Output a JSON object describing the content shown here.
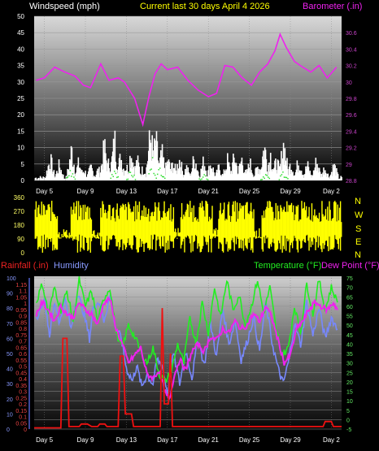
{
  "header": {
    "left": "Windspeed (mph)",
    "center": "Current last 30 days April 4 2026",
    "right": "Barometer (.in)"
  },
  "colors": {
    "wind": "#ffffff",
    "gust_dots": "#33dd33",
    "barometer": "#ee22ee",
    "direction": "#ffff00",
    "rain": "#ee1111",
    "humidity": "#7788ff",
    "temperature": "#22ee22",
    "dewpoint": "#ee22ee",
    "axis_left": "#ffff66",
    "axis_right": "#cc44cc",
    "rain_axis": "#ee4444",
    "humidity_axis": "#8899ff",
    "temp_axis": "#66ee66"
  },
  "chart_data": [
    {
      "type": "bar",
      "name": "windspeed",
      "title": "Current last 30 days April 4 2026",
      "ylabel": "Windspeed (mph)",
      "ylim": [
        0,
        50
      ],
      "yticks": [
        0,
        5,
        10,
        15,
        20,
        25,
        30,
        35,
        40,
        45,
        50
      ],
      "xticks": [
        "Day 5",
        "Day 9",
        "Day 13",
        "Day 17",
        "Day 21",
        "Day 25",
        "Day 29",
        "Day 2"
      ],
      "x_range": [
        4,
        34
      ],
      "wind_peaks": [
        [
          5.5,
          10
        ],
        [
          6.4,
          7
        ],
        [
          7.6,
          14
        ],
        [
          8.3,
          8
        ],
        [
          8.8,
          5
        ],
        [
          9.5,
          6
        ],
        [
          10.2,
          5
        ],
        [
          10.8,
          15
        ],
        [
          11.3,
          9
        ],
        [
          11.8,
          18
        ],
        [
          12.4,
          11
        ],
        [
          12.9,
          7
        ],
        [
          13.4,
          13
        ],
        [
          14.0,
          9
        ],
        [
          14.6,
          6
        ],
        [
          15.3,
          21
        ],
        [
          15.8,
          18
        ],
        [
          16.4,
          12
        ],
        [
          17.0,
          9
        ],
        [
          17.5,
          8
        ],
        [
          18.1,
          10
        ],
        [
          18.8,
          6
        ],
        [
          19.6,
          11
        ],
        [
          20.5,
          9
        ],
        [
          21.2,
          8
        ],
        [
          22.0,
          6
        ],
        [
          22.8,
          9
        ],
        [
          23.5,
          11
        ],
        [
          24.2,
          10
        ],
        [
          25.0,
          8
        ],
        [
          25.8,
          7
        ],
        [
          26.4,
          16
        ],
        [
          27.0,
          12
        ],
        [
          27.6,
          9
        ],
        [
          28.3,
          17
        ],
        [
          29.0,
          8
        ],
        [
          29.8,
          10
        ],
        [
          30.6,
          7
        ],
        [
          31.5,
          9
        ],
        [
          32.3,
          6
        ],
        [
          33.2,
          7
        ]
      ],
      "gust_peaks": [
        [
          7.5,
          4
        ],
        [
          11.8,
          5
        ],
        [
          13.4,
          4
        ],
        [
          15.5,
          8
        ],
        [
          16.3,
          6
        ],
        [
          20.5,
          3
        ],
        [
          26.5,
          3
        ],
        [
          28.3,
          4
        ]
      ],
      "barometer": {
        "ylabel": "Barometer (.in)",
        "ylim": [
          28.8,
          30.8
        ],
        "yticks": [
          28.8,
          29,
          29.2,
          29.4,
          29.6,
          29.8,
          30,
          30.2,
          30.4,
          30.6
        ],
        "points": [
          [
            4.2,
            30.02
          ],
          [
            5.0,
            30.05
          ],
          [
            6.0,
            30.18
          ],
          [
            7.0,
            30.12
          ],
          [
            8.0,
            30.07
          ],
          [
            8.8,
            29.96
          ],
          [
            9.5,
            29.93
          ],
          [
            10.5,
            30.22
          ],
          [
            11.3,
            30.02
          ],
          [
            12.2,
            30.05
          ],
          [
            12.8,
            30.0
          ],
          [
            13.8,
            29.8
          ],
          [
            14.6,
            29.48
          ],
          [
            15.2,
            29.82
          ],
          [
            15.8,
            30.1
          ],
          [
            16.4,
            30.22
          ],
          [
            17.0,
            30.15
          ],
          [
            18.0,
            30.18
          ],
          [
            19.0,
            30.02
          ],
          [
            20.0,
            29.9
          ],
          [
            21.0,
            29.82
          ],
          [
            21.8,
            29.86
          ],
          [
            22.6,
            30.2
          ],
          [
            23.4,
            30.18
          ],
          [
            24.3,
            30.05
          ],
          [
            25.2,
            29.96
          ],
          [
            26.0,
            30.12
          ],
          [
            26.8,
            30.22
          ],
          [
            27.5,
            30.38
          ],
          [
            28.0,
            30.58
          ],
          [
            28.6,
            30.42
          ],
          [
            29.4,
            30.25
          ],
          [
            30.2,
            30.18
          ],
          [
            31.0,
            30.12
          ],
          [
            31.8,
            30.2
          ],
          [
            32.6,
            30.05
          ],
          [
            33.5,
            30.18
          ]
        ]
      }
    },
    {
      "type": "scatter",
      "name": "wind_direction",
      "yticks": [
        0,
        90,
        180,
        270,
        360
      ],
      "ylim": [
        0,
        360
      ],
      "compass": [
        "N",
        "W",
        "S",
        "E",
        "N"
      ],
      "x_range": [
        4,
        34
      ]
    },
    {
      "type": "line",
      "name": "rain_humidity_temperature",
      "x_range": [
        4,
        34
      ],
      "xticks": [
        "Day 5",
        "Day 9",
        "Day 13",
        "Day 17",
        "Day 21",
        "Day 25",
        "Day 29",
        "Day 2"
      ],
      "rain": {
        "label": "Rainfall (.in)",
        "ylim": [
          0,
          1.2
        ],
        "yticks": [
          0,
          0.05,
          0.1,
          0.15,
          0.2,
          0.25,
          0.3,
          0.35,
          0.4,
          0.45,
          0.5,
          0.55,
          0.6,
          0.65,
          0.7,
          0.75,
          0.8,
          0.85,
          0.9,
          0.95,
          1,
          1.05,
          1.1,
          1.15
        ],
        "points": [
          [
            4,
            0.01
          ],
          [
            6.6,
            0.01
          ],
          [
            6.8,
            0.72
          ],
          [
            7.2,
            0.72
          ],
          [
            7.4,
            0.02
          ],
          [
            8.4,
            0.02
          ],
          [
            8.6,
            0.04
          ],
          [
            9.2,
            0.04
          ],
          [
            9.6,
            0.02
          ],
          [
            10.2,
            0.02
          ],
          [
            10.4,
            0.04
          ],
          [
            10.9,
            0.04
          ],
          [
            11.1,
            0.02
          ],
          [
            12.2,
            0.02
          ],
          [
            12.4,
            0.58
          ],
          [
            12.7,
            0.58
          ],
          [
            12.9,
            0.12
          ],
          [
            13.5,
            0.12
          ],
          [
            13.7,
            0.02
          ],
          [
            16.3,
            0.02
          ],
          [
            16.5,
            0.96
          ],
          [
            16.7,
            0.2
          ],
          [
            17.1,
            0.2
          ],
          [
            17.3,
            0.6
          ],
          [
            17.5,
            0.02
          ],
          [
            32.2,
            0.02
          ],
          [
            32.4,
            0.06
          ],
          [
            33.0,
            0.06
          ],
          [
            33.2,
            0.02
          ],
          [
            34,
            0.02
          ]
        ]
      },
      "humidity": {
        "label": "Humidity",
        "ylim": [
          0,
          100
        ],
        "yticks": [
          0,
          10,
          20,
          30,
          40,
          50,
          60,
          70,
          80,
          90,
          100
        ],
        "points": [
          [
            4.2,
            72
          ],
          [
            5.0,
            88
          ],
          [
            5.5,
            62
          ],
          [
            6.0,
            84
          ],
          [
            6.5,
            70
          ],
          [
            7.0,
            86
          ],
          [
            7.6,
            66
          ],
          [
            8.2,
            90
          ],
          [
            8.8,
            78
          ],
          [
            9.4,
            60
          ],
          [
            9.8,
            82
          ],
          [
            10.4,
            84
          ],
          [
            10.8,
            72
          ],
          [
            11.4,
            88
          ],
          [
            12.0,
            66
          ],
          [
            12.5,
            60
          ],
          [
            13.0,
            40
          ],
          [
            13.6,
            32
          ],
          [
            14.0,
            42
          ],
          [
            14.5,
            28
          ],
          [
            15.0,
            36
          ],
          [
            15.6,
            30
          ],
          [
            16.0,
            46
          ],
          [
            16.5,
            42
          ],
          [
            17.0,
            24
          ],
          [
            17.6,
            50
          ],
          [
            18.2,
            30
          ],
          [
            18.8,
            52
          ],
          [
            19.4,
            34
          ],
          [
            20.0,
            60
          ],
          [
            20.6,
            42
          ],
          [
            21.2,
            70
          ],
          [
            21.8,
            48
          ],
          [
            22.4,
            80
          ],
          [
            23.0,
            56
          ],
          [
            23.6,
            72
          ],
          [
            24.2,
            46
          ],
          [
            24.8,
            58
          ],
          [
            25.4,
            74
          ],
          [
            26.0,
            52
          ],
          [
            26.6,
            84
          ],
          [
            27.2,
            58
          ],
          [
            27.8,
            40
          ],
          [
            28.3,
            30
          ],
          [
            28.8,
            44
          ],
          [
            29.4,
            70
          ],
          [
            30.0,
            56
          ],
          [
            30.6,
            84
          ],
          [
            31.2,
            62
          ],
          [
            31.8,
            80
          ],
          [
            32.4,
            60
          ],
          [
            33.0,
            74
          ],
          [
            33.6,
            66
          ]
        ]
      },
      "temperature": {
        "label": "Temperature (°F)",
        "ylim": [
          -5,
          75
        ],
        "yticks": [
          -5,
          0,
          5,
          10,
          15,
          20,
          25,
          30,
          35,
          40,
          45,
          50,
          55,
          60,
          65,
          70,
          75
        ],
        "points": [
          [
            4.2,
            62
          ],
          [
            4.8,
            72
          ],
          [
            5.4,
            56
          ],
          [
            6.0,
            70
          ],
          [
            6.6,
            58
          ],
          [
            7.2,
            68
          ],
          [
            7.8,
            52
          ],
          [
            8.4,
            74
          ],
          [
            9.0,
            60
          ],
          [
            9.6,
            68
          ],
          [
            10.2,
            52
          ],
          [
            10.8,
            64
          ],
          [
            11.4,
            70
          ],
          [
            12.0,
            46
          ],
          [
            12.6,
            38
          ],
          [
            13.2,
            50
          ],
          [
            13.8,
            44
          ],
          [
            14.4,
            36
          ],
          [
            15.0,
            30
          ],
          [
            15.6,
            38
          ],
          [
            16.2,
            24
          ],
          [
            16.8,
            20
          ],
          [
            17.4,
            26
          ],
          [
            18.0,
            40
          ],
          [
            18.6,
            30
          ],
          [
            19.2,
            54
          ],
          [
            19.8,
            40
          ],
          [
            20.4,
            62
          ],
          [
            21.0,
            46
          ],
          [
            21.6,
            70
          ],
          [
            22.2,
            54
          ],
          [
            22.8,
            74
          ],
          [
            23.4,
            58
          ],
          [
            24.0,
            66
          ],
          [
            24.6,
            50
          ],
          [
            25.2,
            60
          ],
          [
            25.8,
            74
          ],
          [
            26.4,
            56
          ],
          [
            27.0,
            70
          ],
          [
            27.6,
            48
          ],
          [
            28.2,
            34
          ],
          [
            28.8,
            38
          ],
          [
            29.4,
            60
          ],
          [
            30.0,
            46
          ],
          [
            30.6,
            72
          ],
          [
            31.2,
            56
          ],
          [
            31.8,
            74
          ],
          [
            32.4,
            58
          ],
          [
            33.0,
            70
          ],
          [
            33.6,
            62
          ]
        ]
      },
      "dewpoint": {
        "label": "Dew Point (°F)",
        "points": [
          [
            4.2,
            56
          ],
          [
            4.8,
            62
          ],
          [
            5.4,
            58
          ],
          [
            6.0,
            52
          ],
          [
            6.6,
            60
          ],
          [
            7.2,
            56
          ],
          [
            7.8,
            54
          ],
          [
            8.4,
            62
          ],
          [
            9.0,
            58
          ],
          [
            9.6,
            56
          ],
          [
            10.2,
            50
          ],
          [
            10.8,
            62
          ],
          [
            11.4,
            64
          ],
          [
            12.0,
            48
          ],
          [
            12.6,
            40
          ],
          [
            13.2,
            30
          ],
          [
            13.8,
            34
          ],
          [
            14.4,
            38
          ],
          [
            15.0,
            24
          ],
          [
            15.6,
            22
          ],
          [
            16.2,
            26
          ],
          [
            16.8,
            14
          ],
          [
            17.2,
            10
          ],
          [
            17.6,
            22
          ],
          [
            18.2,
            32
          ],
          [
            18.8,
            26
          ],
          [
            19.4,
            36
          ],
          [
            20.0,
            40
          ],
          [
            20.6,
            36
          ],
          [
            21.2,
            44
          ],
          [
            21.8,
            42
          ],
          [
            22.4,
            48
          ],
          [
            23.0,
            46
          ],
          [
            23.6,
            52
          ],
          [
            24.2,
            48
          ],
          [
            24.8,
            50
          ],
          [
            25.4,
            56
          ],
          [
            26.0,
            52
          ],
          [
            26.6,
            60
          ],
          [
            27.2,
            54
          ],
          [
            27.8,
            42
          ],
          [
            28.4,
            30
          ],
          [
            29.0,
            34
          ],
          [
            29.6,
            48
          ],
          [
            30.2,
            52
          ],
          [
            30.8,
            58
          ],
          [
            31.4,
            62
          ],
          [
            32.0,
            60
          ],
          [
            32.6,
            58
          ],
          [
            33.2,
            62
          ],
          [
            33.6,
            58
          ]
        ]
      }
    }
  ]
}
